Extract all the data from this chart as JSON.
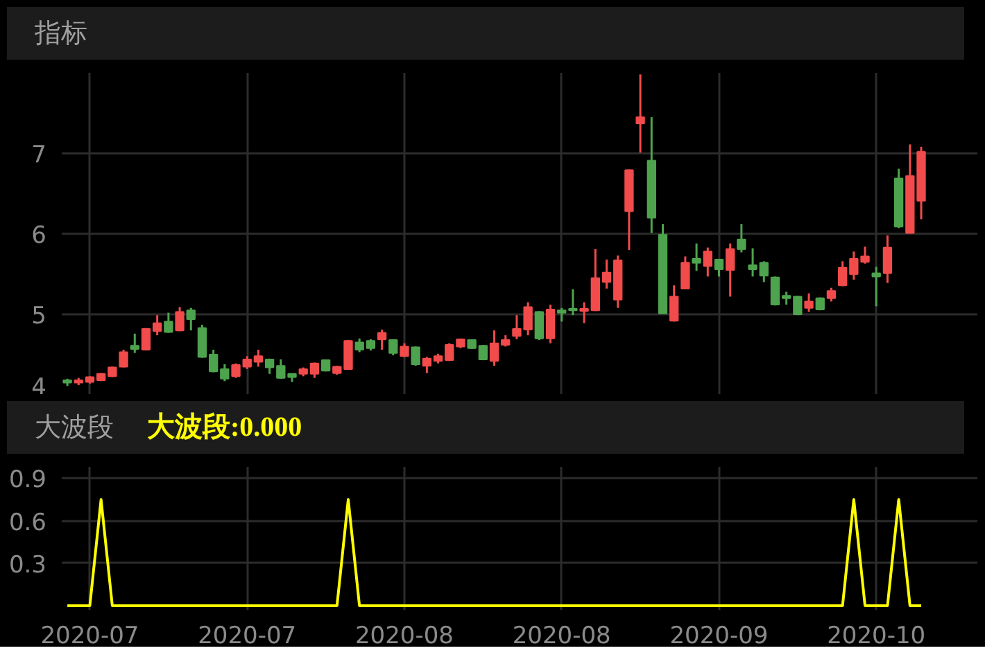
{
  "chart_data": [
    {
      "type": "candlestick",
      "title": "指标",
      "ohlc": [
        [
          4.18,
          4.2,
          4.11,
          4.15
        ],
        [
          4.15,
          4.21,
          4.12,
          4.18
        ],
        [
          4.16,
          4.23,
          4.14,
          4.22
        ],
        [
          4.18,
          4.27,
          4.17,
          4.26
        ],
        [
          4.23,
          4.35,
          4.22,
          4.34
        ],
        [
          4.35,
          4.56,
          4.34,
          4.53
        ],
        [
          4.61,
          4.76,
          4.52,
          4.57
        ],
        [
          4.56,
          4.83,
          4.55,
          4.82
        ],
        [
          4.79,
          4.99,
          4.74,
          4.89
        ],
        [
          4.91,
          5.02,
          4.77,
          4.78
        ],
        [
          4.8,
          5.09,
          4.79,
          5.03
        ],
        [
          5.05,
          5.08,
          4.8,
          4.94
        ],
        [
          4.83,
          4.87,
          4.46,
          4.47
        ],
        [
          4.5,
          4.56,
          4.28,
          4.29
        ],
        [
          4.32,
          4.38,
          4.17,
          4.2
        ],
        [
          4.23,
          4.39,
          4.21,
          4.37
        ],
        [
          4.35,
          4.48,
          4.32,
          4.44
        ],
        [
          4.41,
          4.56,
          4.35,
          4.48
        ],
        [
          4.44,
          4.45,
          4.26,
          4.34
        ],
        [
          4.36,
          4.44,
          4.2,
          4.21
        ],
        [
          4.26,
          4.26,
          4.16,
          4.22
        ],
        [
          4.26,
          4.34,
          4.23,
          4.32
        ],
        [
          4.26,
          4.4,
          4.21,
          4.39
        ],
        [
          4.43,
          4.44,
          4.29,
          4.3
        ],
        [
          4.27,
          4.36,
          4.25,
          4.35
        ],
        [
          4.32,
          4.68,
          4.31,
          4.67
        ],
        [
          4.65,
          4.7,
          4.53,
          4.56
        ],
        [
          4.67,
          4.69,
          4.55,
          4.58
        ],
        [
          4.69,
          4.81,
          4.56,
          4.77
        ],
        [
          4.68,
          4.69,
          4.49,
          4.52
        ],
        [
          4.48,
          4.64,
          4.47,
          4.6
        ],
        [
          4.59,
          4.6,
          4.36,
          4.38
        ],
        [
          4.36,
          4.47,
          4.27,
          4.45
        ],
        [
          4.42,
          4.51,
          4.39,
          4.48
        ],
        [
          4.43,
          4.64,
          4.42,
          4.62
        ],
        [
          4.6,
          4.7,
          4.58,
          4.69
        ],
        [
          4.68,
          4.69,
          4.57,
          4.58
        ],
        [
          4.61,
          4.62,
          4.43,
          4.44
        ],
        [
          4.42,
          4.8,
          4.36,
          4.64
        ],
        [
          4.62,
          4.74,
          4.6,
          4.68
        ],
        [
          4.73,
          4.99,
          4.69,
          4.82
        ],
        [
          4.81,
          5.15,
          4.74,
          5.09
        ],
        [
          5.03,
          5.04,
          4.68,
          4.7
        ],
        [
          4.7,
          5.12,
          4.64,
          5.06
        ],
        [
          5.05,
          5.08,
          4.91,
          5.02
        ],
        [
          5.07,
          5.31,
          4.99,
          5.05
        ],
        [
          5.04,
          5.15,
          4.89,
          5.07
        ],
        [
          5.05,
          5.81,
          5.04,
          5.45
        ],
        [
          5.4,
          5.68,
          5.32,
          5.52
        ],
        [
          5.18,
          5.73,
          5.08,
          5.67
        ],
        [
          6.28,
          6.8,
          5.8,
          6.79
        ],
        [
          7.37,
          7.98,
          7.01,
          7.45
        ],
        [
          6.91,
          7.45,
          6.01,
          6.2
        ],
        [
          5.99,
          6.12,
          5.01,
          5.01
        ],
        [
          4.92,
          5.36,
          4.91,
          5.22
        ],
        [
          5.32,
          5.72,
          5.31,
          5.64
        ],
        [
          5.69,
          5.88,
          5.54,
          5.64
        ],
        [
          5.6,
          5.83,
          5.47,
          5.78
        ],
        [
          5.68,
          5.69,
          5.47,
          5.56
        ],
        [
          5.55,
          5.88,
          5.22,
          5.81
        ],
        [
          5.93,
          6.12,
          5.77,
          5.81
        ],
        [
          5.61,
          5.82,
          5.47,
          5.56
        ],
        [
          5.64,
          5.66,
          5.4,
          5.48
        ],
        [
          5.46,
          5.47,
          5.11,
          5.12
        ],
        [
          5.23,
          5.28,
          5.12,
          5.2
        ],
        [
          5.22,
          5.23,
          4.99,
          5.0
        ],
        [
          5.08,
          5.26,
          5.03,
          5.16
        ],
        [
          5.2,
          5.21,
          5.05,
          5.06
        ],
        [
          5.2,
          5.33,
          5.16,
          5.29
        ],
        [
          5.36,
          5.66,
          5.35,
          5.58
        ],
        [
          5.5,
          5.78,
          5.43,
          5.69
        ],
        [
          5.65,
          5.84,
          5.63,
          5.72
        ],
        [
          5.51,
          5.59,
          5.1,
          5.47
        ],
        [
          5.51,
          5.98,
          5.39,
          5.83
        ],
        [
          6.69,
          6.81,
          6.07,
          6.09
        ],
        [
          6.01,
          7.11,
          6.01,
          6.72
        ],
        [
          6.41,
          7.08,
          6.18,
          7.02
        ]
      ],
      "colors": [
        "#4ea44e",
        "#f24b4b",
        "#f24b4b",
        "#f24b4b",
        "#f24b4b",
        "#f24b4b",
        "#4ea44e",
        "#f24b4b",
        "#f24b4b",
        "#4ea44e",
        "#f24b4b",
        "#4ea44e",
        "#4ea44e",
        "#4ea44e",
        "#4ea44e",
        "#f24b4b",
        "#f24b4b",
        "#f24b4b",
        "#4ea44e",
        "#4ea44e",
        "#4ea44e",
        "#f24b4b",
        "#f24b4b",
        "#4ea44e",
        "#f24b4b",
        "#f24b4b",
        "#4ea44e",
        "#4ea44e",
        "#f24b4b",
        "#4ea44e",
        "#f24b4b",
        "#4ea44e",
        "#f24b4b",
        "#f24b4b",
        "#f24b4b",
        "#f24b4b",
        "#4ea44e",
        "#4ea44e",
        "#f24b4b",
        "#f24b4b",
        "#f24b4b",
        "#f24b4b",
        "#4ea44e",
        "#f24b4b",
        "#4ea44e",
        "#4ea44e",
        "#f24b4b",
        "#f24b4b",
        "#f24b4b",
        "#f24b4b",
        "#f24b4b",
        "#f24b4b",
        "#4ea44e",
        "#4ea44e",
        "#f24b4b",
        "#f24b4b",
        "#4ea44e",
        "#f24b4b",
        "#4ea44e",
        "#f24b4b",
        "#4ea44e",
        "#4ea44e",
        "#4ea44e",
        "#4ea44e",
        "#4ea44e",
        "#4ea44e",
        "#f24b4b",
        "#4ea44e",
        "#f24b4b",
        "#f24b4b",
        "#f24b4b",
        "#f24b4b",
        "#4ea44e",
        "#f24b4b",
        "#4ea44e",
        "#f24b4b",
        "#f24b4b"
      ],
      "categories": [
        null,
        null,
        "2020-07",
        null,
        null,
        null,
        null,
        null,
        null,
        null,
        null,
        null,
        null,
        null,
        null,
        null,
        "2020-07",
        null,
        null,
        null,
        null,
        null,
        null,
        null,
        null,
        null,
        null,
        null,
        null,
        null,
        "2020-08",
        null,
        null,
        null,
        null,
        null,
        null,
        null,
        null,
        null,
        null,
        null,
        null,
        null,
        "2020-08",
        null,
        null,
        null,
        null,
        null,
        null,
        null,
        null,
        null,
        null,
        null,
        null,
        null,
        "2020-09",
        null,
        null,
        null,
        null,
        null,
        null,
        null,
        null,
        null,
        null,
        null,
        null,
        null,
        "2020-10",
        null,
        null,
        null,
        null
      ],
      "ylim": [
        4,
        8
      ],
      "yticks": [
        4,
        5,
        6,
        7
      ],
      "tick_labels": "y",
      "grid": true
    },
    {
      "type": "line",
      "title": "大波段",
      "annotations": [
        "大波段:0.000"
      ],
      "series": [
        {
          "color": "#ffff00",
          "values": [
            0,
            0,
            0,
            0.75,
            0,
            0,
            0,
            0,
            0,
            0,
            0,
            0,
            0,
            0,
            0,
            0,
            0,
            0,
            0,
            0,
            0,
            0,
            0,
            0,
            0,
            0.75,
            0,
            0,
            0,
            0,
            0,
            0,
            0,
            0,
            0,
            0,
            0,
            0,
            0,
            0,
            0,
            0,
            0,
            0,
            0,
            0,
            0,
            0,
            0,
            0,
            0,
            0,
            0,
            0,
            0,
            0,
            0,
            0,
            0,
            0,
            0,
            0,
            0,
            0,
            0,
            0,
            0,
            0,
            0,
            0,
            0.75,
            0,
            0,
            0,
            0.75,
            0,
            0
          ]
        }
      ],
      "categories": [
        null,
        null,
        "2020-07",
        null,
        null,
        null,
        null,
        null,
        null,
        null,
        null,
        null,
        null,
        null,
        null,
        null,
        "2020-07",
        null,
        null,
        null,
        null,
        null,
        null,
        null,
        null,
        null,
        null,
        null,
        null,
        null,
        "2020-08",
        null,
        null,
        null,
        null,
        null,
        null,
        null,
        null,
        null,
        null,
        null,
        null,
        null,
        "2020-08",
        null,
        null,
        null,
        null,
        null,
        null,
        null,
        null,
        null,
        null,
        null,
        null,
        null,
        "2020-09",
        null,
        null,
        null,
        null,
        null,
        null,
        null,
        null,
        null,
        null,
        null,
        null,
        null,
        "2020-10",
        null,
        null,
        null,
        null
      ],
      "ylim": [
        -0.03,
        0.98
      ],
      "yticks": [
        0.3,
        0.6,
        0.9
      ],
      "grid": true
    }
  ]
}
